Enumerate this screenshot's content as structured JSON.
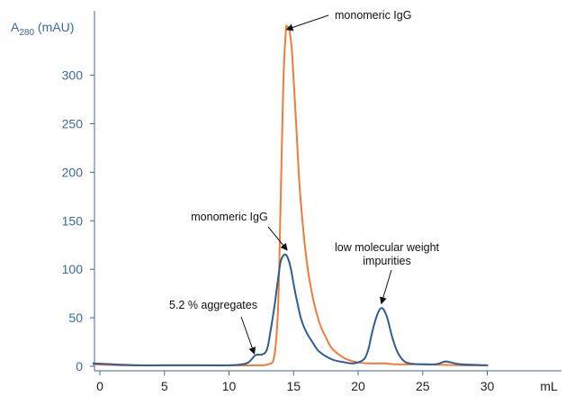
{
  "chart_data": {
    "type": "line",
    "xlabel": "mL",
    "ylabel": {
      "main": "A",
      "sub": "280",
      "rest": " (mAU)"
    },
    "xlim": [
      -0.5,
      30
    ],
    "ylim": [
      0,
      350
    ],
    "x_ticks": [
      0,
      5,
      10,
      15,
      20,
      25,
      30
    ],
    "y_ticks": [
      0,
      50,
      100,
      150,
      200,
      250,
      300
    ],
    "colors": {
      "blue": "#2e5d95",
      "orange": "#f07b3a",
      "axis": "#3a6aa0"
    },
    "series": [
      {
        "color": "orange",
        "x": [
          -0.5,
          2,
          5,
          8,
          10,
          12,
          13,
          13.5,
          13.8,
          14.0,
          14.2,
          14.4,
          14.5,
          14.7,
          14.9,
          15.2,
          15.5,
          16,
          16.5,
          17,
          17.5,
          18,
          19,
          20,
          21,
          22,
          23,
          25,
          28,
          30
        ],
        "y": [
          2,
          1,
          1,
          1,
          1,
          1,
          2,
          10,
          60,
          170,
          290,
          345,
          350,
          345,
          320,
          250,
          180,
          110,
          70,
          45,
          30,
          18,
          8,
          4,
          3,
          3,
          2,
          2,
          1,
          1
        ]
      },
      {
        "color": "blue",
        "x": [
          -0.5,
          1,
          3,
          5,
          8,
          10,
          11,
          11.5,
          11.8,
          12.0,
          12.2,
          12.5,
          12.8,
          13.0,
          13.2,
          13.5,
          13.8,
          14.0,
          14.2,
          14.4,
          14.6,
          14.8,
          15.0,
          15.3,
          15.6,
          16,
          16.5,
          17,
          18,
          19,
          19.5,
          20,
          20.5,
          20.8,
          21.0,
          21.3,
          21.6,
          21.8,
          22.0,
          22.3,
          22.6,
          23,
          23.5,
          24,
          25,
          26,
          26.5,
          26.8,
          27.2,
          28,
          30
        ],
        "y": [
          3,
          2,
          1,
          1,
          1,
          1,
          2,
          4,
          8,
          11,
          12,
          12,
          14,
          20,
          35,
          60,
          90,
          108,
          114,
          115,
          110,
          100,
          85,
          65,
          48,
          35,
          24,
          15,
          7,
          4,
          3,
          4,
          8,
          18,
          30,
          46,
          57,
          60,
          58,
          48,
          32,
          16,
          6,
          3,
          2,
          2,
          4,
          5,
          4,
          2,
          1
        ]
      }
    ],
    "annotations": [
      {
        "lines": [
          "monomeric IgG"
        ],
        "series": "orange",
        "x": 14.6,
        "y": 349
      },
      {
        "lines": [
          "monomeric IgG"
        ],
        "series": "blue",
        "x": 14.5,
        "y": 117
      },
      {
        "lines": [
          "low molecular weight",
          "impurities"
        ],
        "series": "blue",
        "x": 21.8,
        "y": 61
      },
      {
        "lines": [
          "5.2 % aggregates"
        ],
        "series": "blue",
        "x": 12.1,
        "y": 12
      }
    ]
  }
}
